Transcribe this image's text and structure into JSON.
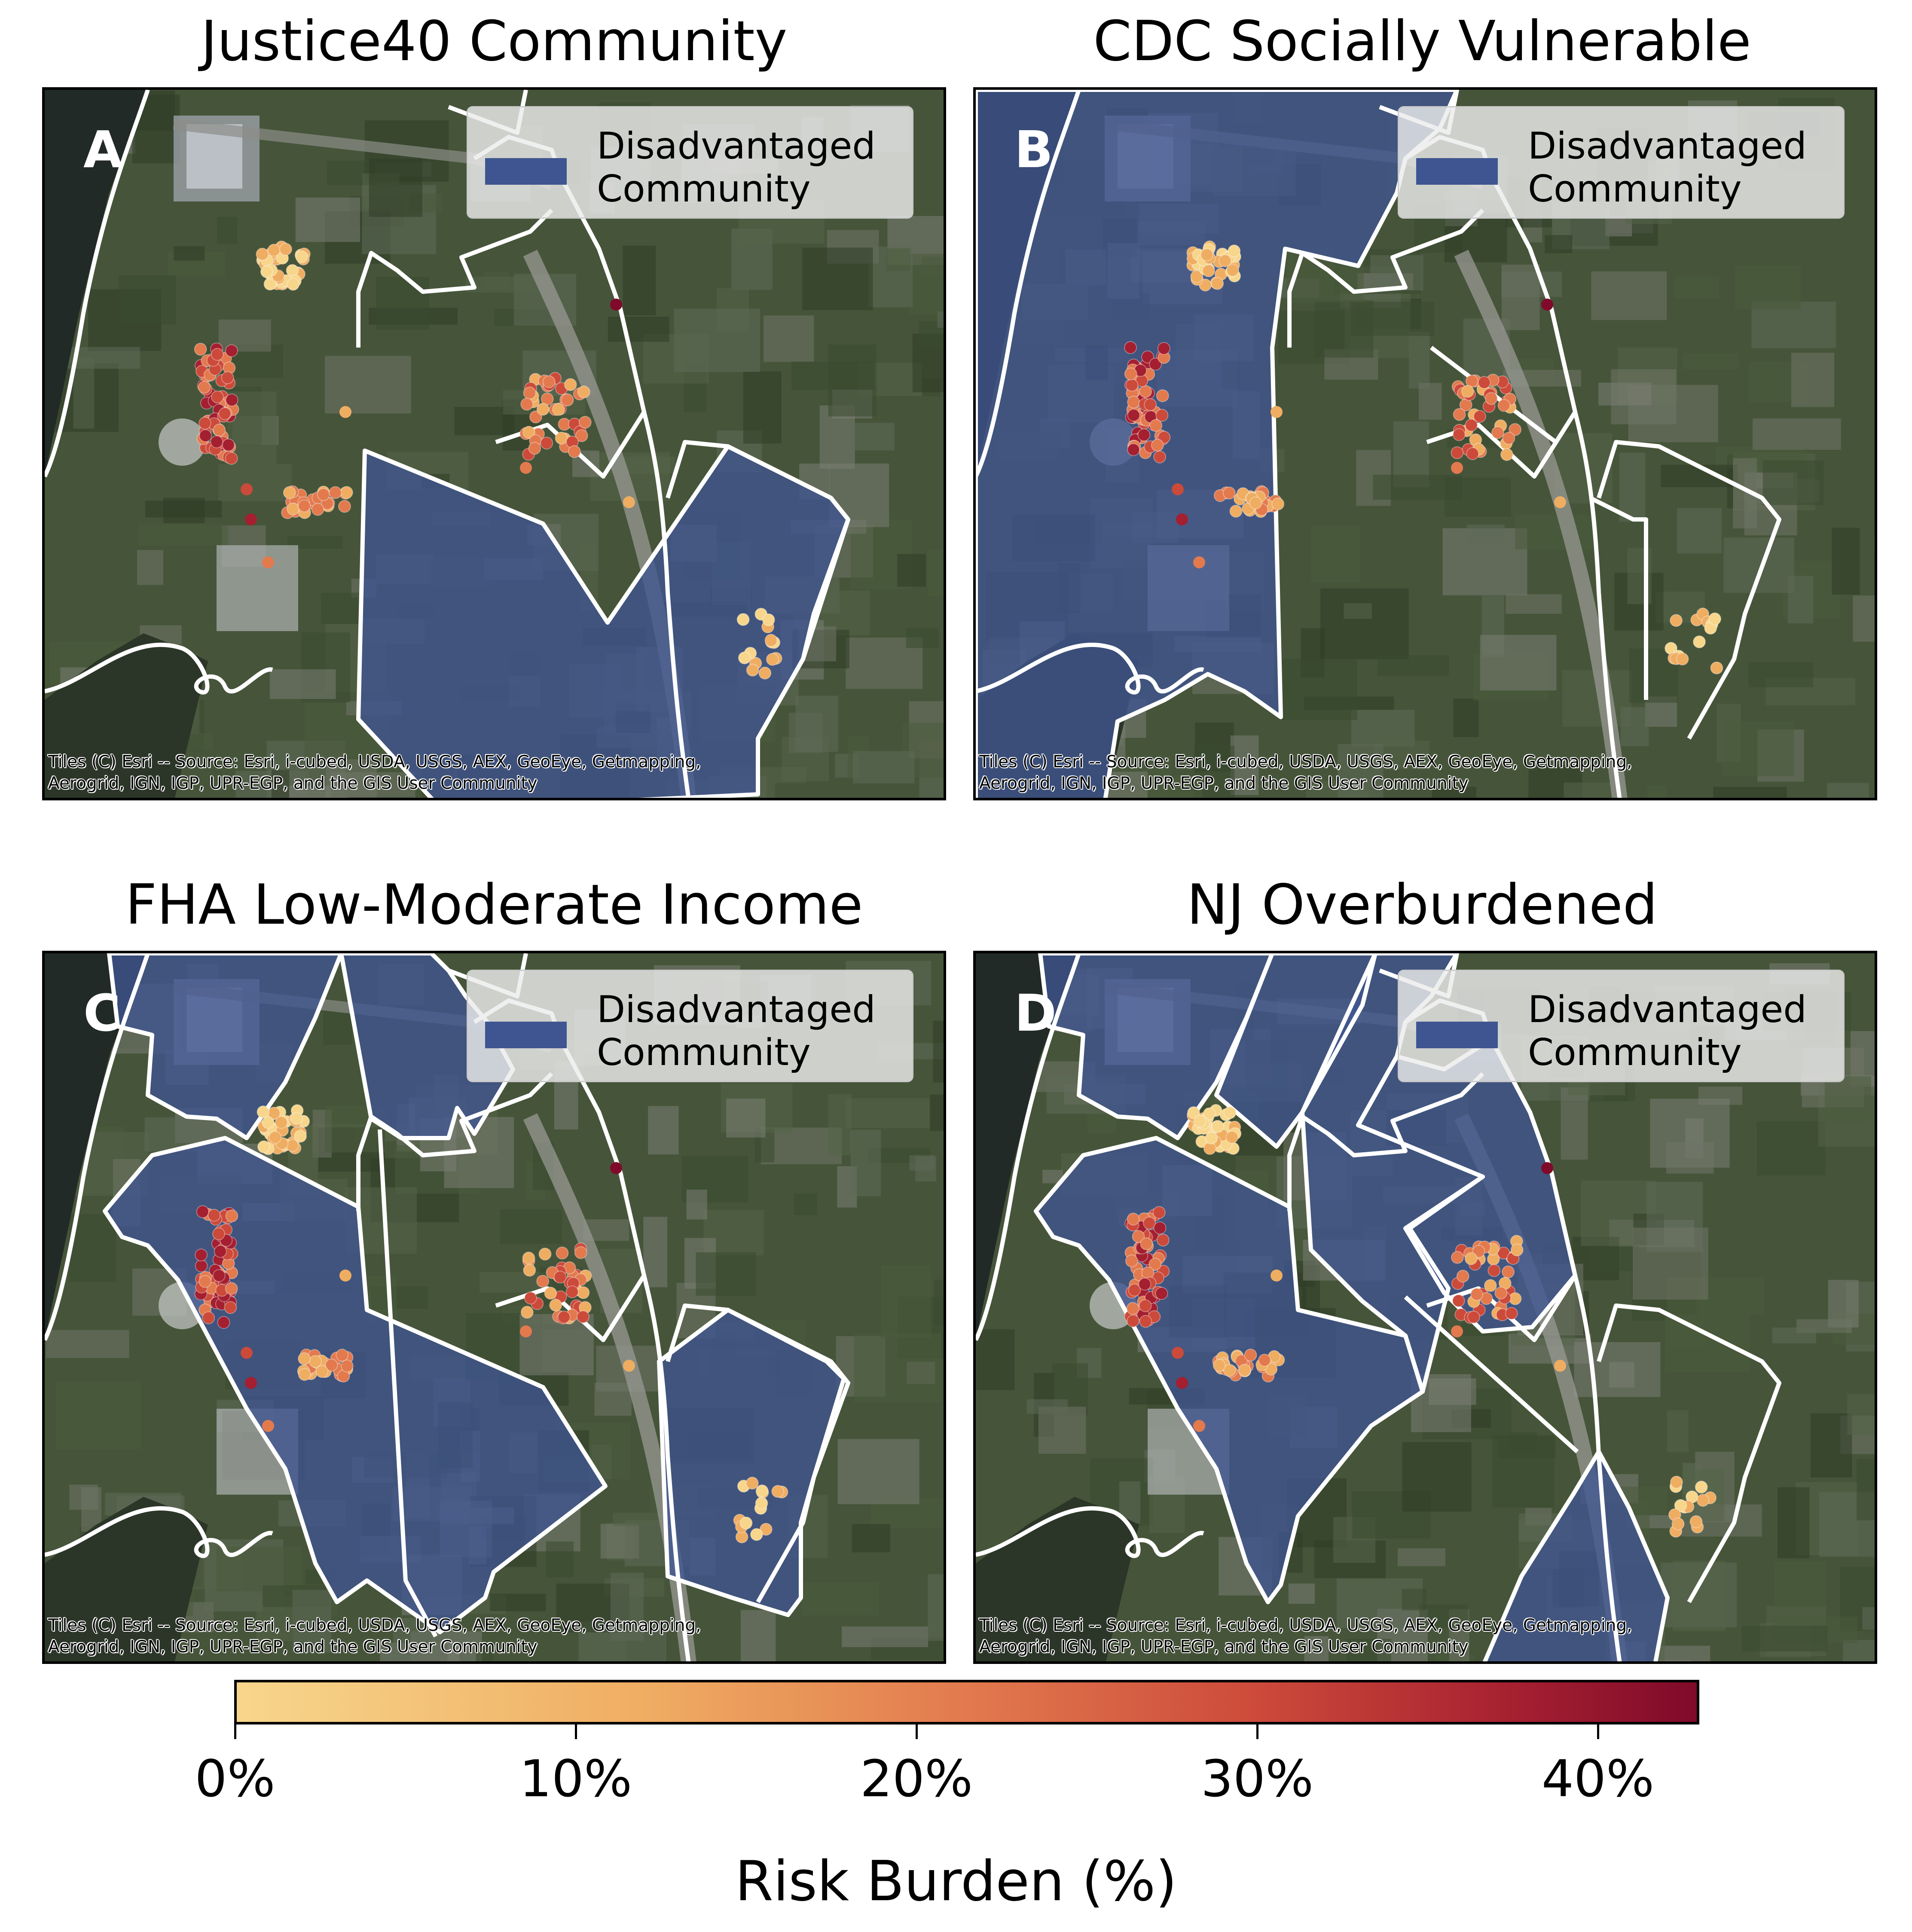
{
  "panels": [
    {
      "title": "Justice40 Community",
      "letter": "A"
    },
    {
      "title": "CDC Socially Vulnerable",
      "letter": "B"
    },
    {
      "title": "FHA Low-Moderate Income",
      "letter": "C"
    },
    {
      "title": "NJ Overburdened",
      "letter": "D"
    }
  ],
  "legend": {
    "line1": "Disadvantaged",
    "line2": "Community",
    "color": "#3f5591"
  },
  "attribution": {
    "line1": "Tiles (C) Esri -- Source: Esri, i-cubed, USDA, USGS, AEX, GeoEye, Getmapping,",
    "line2": "Aerogrid, IGN, IGP, UPR-EGP, and the GIS User Community"
  },
  "colorbar": {
    "title": "Risk Burden (%)",
    "ticks": [
      "0%",
      "10%",
      "20%",
      "30%",
      "40%"
    ],
    "min": 0,
    "max": 43,
    "colors": [
      "#f7d68c",
      "#efad62",
      "#e27a4e",
      "#cc4a3a",
      "#a41f30",
      "#7f0a2a"
    ]
  }
}
